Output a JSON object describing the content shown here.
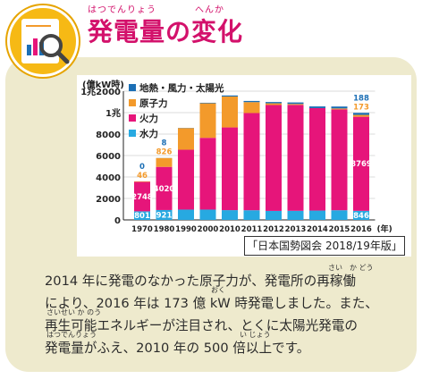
{
  "header": {
    "title": "発電量の変化",
    "ruby_hatsudenryou": "はつでんりょう",
    "ruby_henka": "へんか"
  },
  "chart_data": {
    "type": "bar",
    "stacked": true,
    "unit_label": "(億kW時)",
    "x_unit": "(年)",
    "categories": [
      "1970",
      "1980",
      "1990",
      "2000",
      "2010",
      "2011",
      "2012",
      "2013",
      "2014",
      "2015",
      "2016"
    ],
    "ylim": [
      0,
      12000
    ],
    "y_ticks": [
      {
        "value": 0,
        "label": "0"
      },
      {
        "value": 2000,
        "label": "2000"
      },
      {
        "value": 4000,
        "label": "4000"
      },
      {
        "value": 6000,
        "label": "6000"
      },
      {
        "value": 8000,
        "label": "8000"
      },
      {
        "value": 10000,
        "label": "1兆"
      },
      {
        "value": 12000,
        "label": "1兆2000"
      }
    ],
    "grid": true,
    "series": [
      {
        "name": "水力",
        "ruby": "すいりょく",
        "color": "#27a9e1",
        "values": [
          801,
          921,
          960,
          960,
          910,
          900,
          840,
          850,
          870,
          900,
          846
        ]
      },
      {
        "name": "火力",
        "ruby": "かりょく",
        "color": "#e6157a",
        "values": [
          2748,
          4020,
          5580,
          6690,
          7710,
          9060,
          9870,
          9870,
          9550,
          9400,
          8769
        ]
      },
      {
        "name": "原子力",
        "ruby": "げんしりょく",
        "color": "#f39a2b",
        "values": [
          46,
          826,
          2020,
          3220,
          2880,
          1020,
          160,
          90,
          0,
          90,
          173
        ]
      },
      {
        "name": "地熱・風力・太陽光",
        "ruby": "ちねつ　ふうりょく　たいようこう",
        "color": "#1c6fb5",
        "values": [
          0,
          8,
          20,
          50,
          100,
          110,
          120,
          140,
          160,
          180,
          188
        ]
      }
    ],
    "data_labels": [
      {
        "category": "1970",
        "series": "水力",
        "text": "801"
      },
      {
        "category": "1970",
        "series": "火力",
        "text": "2748"
      },
      {
        "category": "1970",
        "series": "原子力",
        "text": "46"
      },
      {
        "category": "1970",
        "series": "地熱・風力・太陽光",
        "text": "0"
      },
      {
        "category": "1980",
        "series": "水力",
        "text": "921"
      },
      {
        "category": "1980",
        "series": "火力",
        "text": "4020"
      },
      {
        "category": "1980",
        "series": "原子力",
        "text": "826"
      },
      {
        "category": "1980",
        "series": "地熱・風力・太陽光",
        "text": "8"
      },
      {
        "category": "2016",
        "series": "水力",
        "text": "846"
      },
      {
        "category": "2016",
        "series": "火力",
        "text": "8769"
      },
      {
        "category": "2016",
        "series": "原子力",
        "text": "173"
      },
      {
        "category": "2016",
        "series": "地熱・風力・太陽光",
        "text": "188"
      }
    ]
  },
  "source": "「日本国勢図会 2018/19年版」",
  "body": {
    "line1": "2014 年に発電のなかった原子力が、発電所の再稼働",
    "line2": "により、2016 年は 173 億 kW 時発電しました。また、",
    "line3": "再生可能エネルギーが注目され、とくに太陽光発電の",
    "line4": "発電量がふえ、2010 年の 500 倍以上です。",
    "ruby_saikadou": "さい　か どう",
    "ruby_oku": "おく",
    "ruby_saiseikanou": "さいせい か のう",
    "ruby_hatsudenryou": "はつでんりょう",
    "ruby_ijou": "い じょう"
  },
  "colors": {
    "title": "#d3116b",
    "panel": "#eeeacd",
    "icon": "#f6b915"
  }
}
